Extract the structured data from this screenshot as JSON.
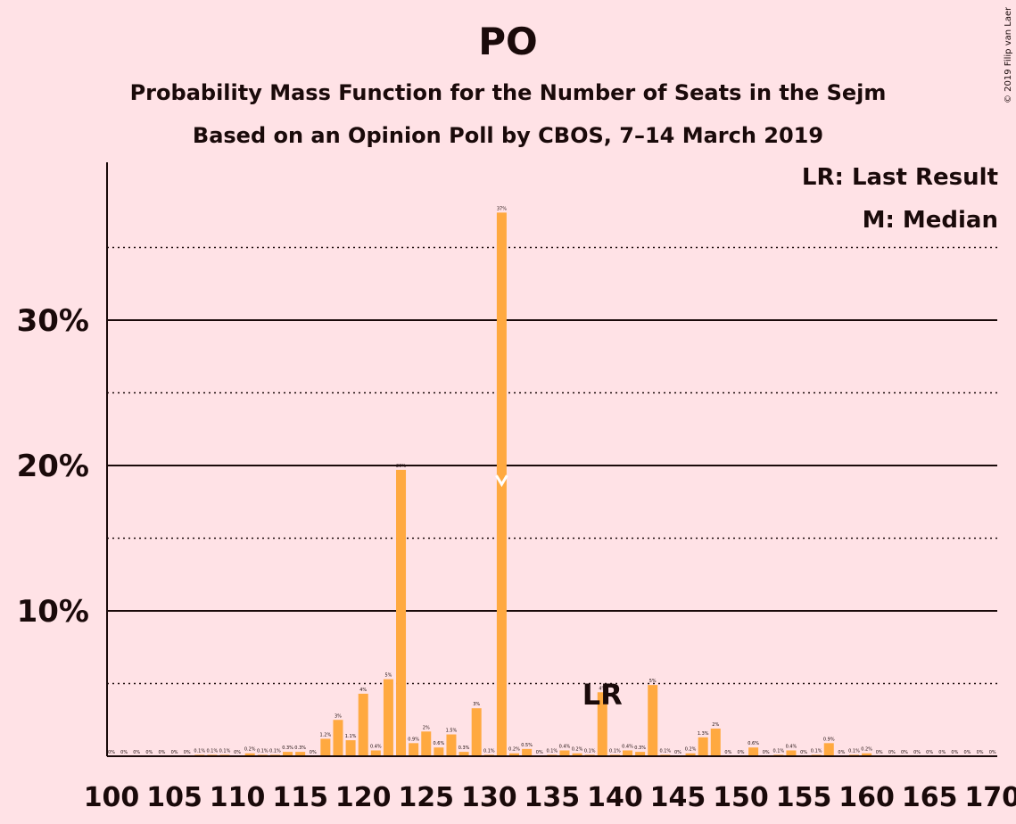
{
  "title": "PO",
  "subtitle": "Probability Mass Function for the Number of Seats in the Sejm",
  "subtitle2": "Based on an Opinion Poll by CBOS, 7–14 March 2019",
  "copyright": "© 2019 Filip van Laenen",
  "legend": {
    "lr": "LR: Last Result",
    "median": "M: Median"
  },
  "colors": {
    "bar": "#ffa940",
    "background": "#ffe2e6",
    "text": "#1a0a0a"
  },
  "chart_data": {
    "type": "bar",
    "x_start": 100,
    "x_end": 170,
    "xticks": [
      100,
      105,
      110,
      115,
      120,
      125,
      130,
      135,
      140,
      145,
      150,
      155,
      160,
      165,
      170
    ],
    "yticks": [
      {
        "value": 10,
        "label": "10%"
      },
      {
        "value": 20,
        "label": "20%"
      },
      {
        "value": 30,
        "label": "30%"
      }
    ],
    "ylim": [
      0,
      40
    ],
    "minor_gridlines": [
      5,
      15,
      25,
      35
    ],
    "last_result": {
      "seat": 139,
      "label": "LR"
    },
    "median": {
      "seat": 131,
      "label": "M"
    },
    "bars": [
      {
        "seat": 100,
        "value": 0,
        "label": "0%"
      },
      {
        "seat": 101,
        "value": 0,
        "label": "0%"
      },
      {
        "seat": 102,
        "value": 0,
        "label": "0%"
      },
      {
        "seat": 103,
        "value": 0,
        "label": "0%"
      },
      {
        "seat": 104,
        "value": 0,
        "label": "0%"
      },
      {
        "seat": 105,
        "value": 0,
        "label": "0%"
      },
      {
        "seat": 106,
        "value": 0,
        "label": "0%"
      },
      {
        "seat": 107,
        "value": 0.1,
        "label": "0.1%"
      },
      {
        "seat": 108,
        "value": 0.1,
        "label": "0.1%"
      },
      {
        "seat": 109,
        "value": 0.1,
        "label": "0.1%"
      },
      {
        "seat": 110,
        "value": 0,
        "label": "0%"
      },
      {
        "seat": 111,
        "value": 0.2,
        "label": "0.2%"
      },
      {
        "seat": 112,
        "value": 0.1,
        "label": "0.1%"
      },
      {
        "seat": 113,
        "value": 0.1,
        "label": "0.1%"
      },
      {
        "seat": 114,
        "value": 0.3,
        "label": "0.3%"
      },
      {
        "seat": 115,
        "value": 0.3,
        "label": "0.3%"
      },
      {
        "seat": 116,
        "value": 0,
        "label": "0%"
      },
      {
        "seat": 117,
        "value": 1.2,
        "label": "1.2%"
      },
      {
        "seat": 118,
        "value": 2.5,
        "label": "3%"
      },
      {
        "seat": 119,
        "value": 1.1,
        "label": "1.1%"
      },
      {
        "seat": 120,
        "value": 4.3,
        "label": "4%"
      },
      {
        "seat": 121,
        "value": 0.4,
        "label": "0.4%"
      },
      {
        "seat": 122,
        "value": 5.3,
        "label": "5%"
      },
      {
        "seat": 123,
        "value": 19.7,
        "label": "20%"
      },
      {
        "seat": 124,
        "value": 0.9,
        "label": "0.9%"
      },
      {
        "seat": 125,
        "value": 1.7,
        "label": "2%"
      },
      {
        "seat": 126,
        "value": 0.6,
        "label": "0.6%"
      },
      {
        "seat": 127,
        "value": 1.5,
        "label": "1.5%"
      },
      {
        "seat": 128,
        "value": 0.3,
        "label": "0.3%"
      },
      {
        "seat": 129,
        "value": 3.3,
        "label": "3%"
      },
      {
        "seat": 130,
        "value": 0.1,
        "label": "0.1%"
      },
      {
        "seat": 131,
        "value": 37.4,
        "label": "37%"
      },
      {
        "seat": 132,
        "value": 0.2,
        "label": "0.2%"
      },
      {
        "seat": 133,
        "value": 0.5,
        "label": "0.5%"
      },
      {
        "seat": 134,
        "value": 0,
        "label": "0%"
      },
      {
        "seat": 135,
        "value": 0.1,
        "label": "0.1%"
      },
      {
        "seat": 136,
        "value": 0.4,
        "label": "0.4%"
      },
      {
        "seat": 137,
        "value": 0.2,
        "label": "0.2%"
      },
      {
        "seat": 138,
        "value": 0.1,
        "label": "0.1%"
      },
      {
        "seat": 139,
        "value": 4.4,
        "label": "4%"
      },
      {
        "seat": 140,
        "value": 0.1,
        "label": "0.1%"
      },
      {
        "seat": 141,
        "value": 0.4,
        "label": "0.4%"
      },
      {
        "seat": 142,
        "value": 0.3,
        "label": "0.3%"
      },
      {
        "seat": 143,
        "value": 4.9,
        "label": "5%"
      },
      {
        "seat": 144,
        "value": 0.1,
        "label": "0.1%"
      },
      {
        "seat": 145,
        "value": 0,
        "label": "0%"
      },
      {
        "seat": 146,
        "value": 0.2,
        "label": "0.2%"
      },
      {
        "seat": 147,
        "value": 1.3,
        "label": "1.3%"
      },
      {
        "seat": 148,
        "value": 1.9,
        "label": "2%"
      },
      {
        "seat": 149,
        "value": 0,
        "label": "0%"
      },
      {
        "seat": 150,
        "value": 0,
        "label": "0%"
      },
      {
        "seat": 151,
        "value": 0.6,
        "label": "0.6%"
      },
      {
        "seat": 152,
        "value": 0,
        "label": "0%"
      },
      {
        "seat": 153,
        "value": 0.1,
        "label": "0.1%"
      },
      {
        "seat": 154,
        "value": 0.4,
        "label": "0.4%"
      },
      {
        "seat": 155,
        "value": 0,
        "label": "0%"
      },
      {
        "seat": 156,
        "value": 0.1,
        "label": "0.1%"
      },
      {
        "seat": 157,
        "value": 0.9,
        "label": "0.9%"
      },
      {
        "seat": 158,
        "value": 0,
        "label": "0%"
      },
      {
        "seat": 159,
        "value": 0.1,
        "label": "0.1%"
      },
      {
        "seat": 160,
        "value": 0.2,
        "label": "0.2%"
      },
      {
        "seat": 161,
        "value": 0,
        "label": "0%"
      },
      {
        "seat": 162,
        "value": 0,
        "label": "0%"
      },
      {
        "seat": 163,
        "value": 0,
        "label": "0%"
      },
      {
        "seat": 164,
        "value": 0,
        "label": "0%"
      },
      {
        "seat": 165,
        "value": 0,
        "label": "0%"
      },
      {
        "seat": 166,
        "value": 0,
        "label": "0%"
      },
      {
        "seat": 167,
        "value": 0,
        "label": "0%"
      },
      {
        "seat": 168,
        "value": 0,
        "label": "0%"
      },
      {
        "seat": 169,
        "value": 0,
        "label": "0%"
      },
      {
        "seat": 170,
        "value": 0,
        "label": "0%"
      }
    ]
  }
}
